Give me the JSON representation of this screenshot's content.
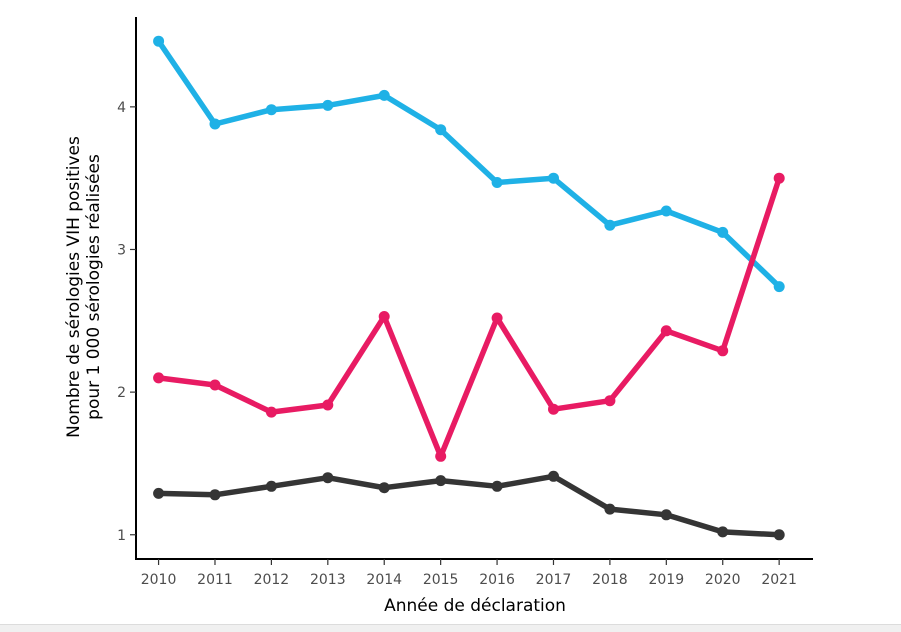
{
  "chart_data": {
    "type": "line",
    "xlabel": "Année de déclaration",
    "ylabel_line1": "Nombre de sérologies VIH positives",
    "ylabel_line2": "pour 1 000 sérologies réalisées",
    "x": [
      2010,
      2011,
      2012,
      2013,
      2014,
      2015,
      2016,
      2017,
      2018,
      2019,
      2020,
      2021
    ],
    "x_tick_labels": [
      "2010",
      "2011",
      "2012",
      "2013",
      "2014",
      "2015",
      "2016",
      "2017",
      "2018",
      "2019",
      "2020",
      "2021"
    ],
    "y_ticks": [
      1,
      2,
      3,
      4
    ],
    "y_tick_labels": [
      "1",
      "2",
      "3",
      "4"
    ],
    "xlim": [
      2009.6,
      2021.6
    ],
    "ylim": [
      0.83,
      4.63
    ],
    "grid": false,
    "legend": "none",
    "series": [
      {
        "color": "#1fb1e6",
        "values": [
          4.46,
          3.88,
          3.98,
          4.01,
          4.08,
          3.84,
          3.47,
          3.5,
          3.17,
          3.27,
          3.12,
          2.74
        ]
      },
      {
        "color": "#e81b63",
        "values": [
          2.1,
          2.05,
          1.86,
          1.91,
          2.53,
          1.55,
          2.52,
          1.88,
          1.94,
          2.43,
          2.29,
          3.5
        ]
      },
      {
        "color": "#353535",
        "values": [
          1.29,
          1.28,
          1.34,
          1.4,
          1.33,
          1.38,
          1.34,
          1.41,
          1.18,
          1.14,
          1.02,
          1.0
        ]
      }
    ]
  }
}
